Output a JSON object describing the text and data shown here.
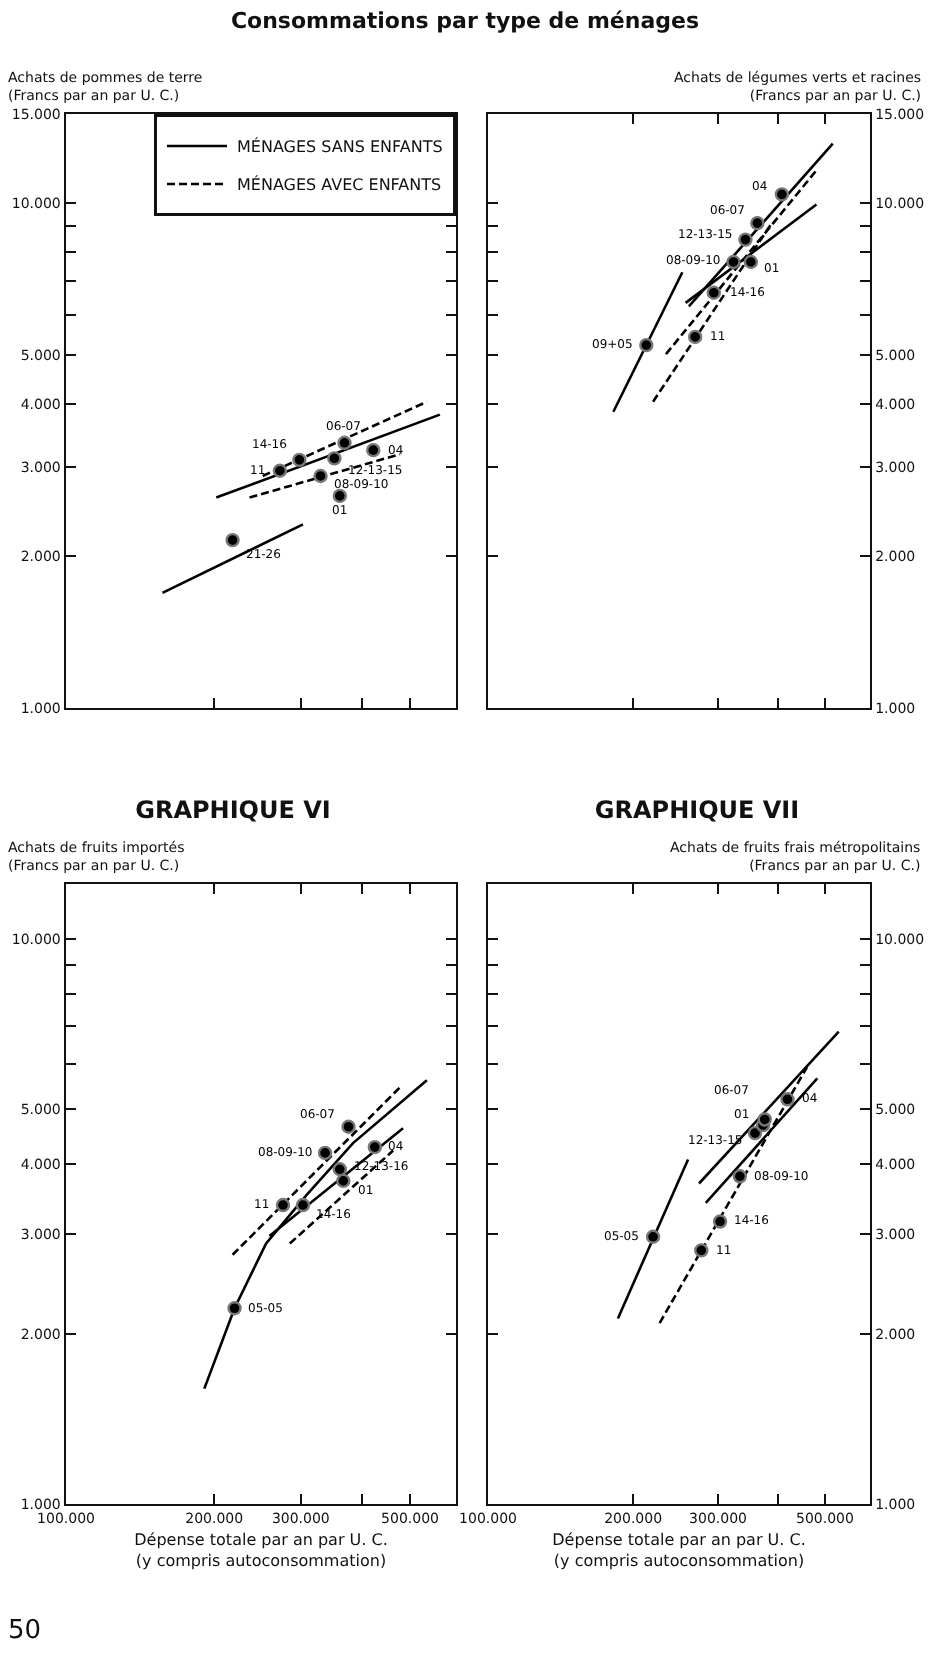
{
  "chart_data": [
    {
      "type": "scatter",
      "title": "Consommations par type de ménages",
      "ylabel": "Achats de pommes de terre\n(Francs par an par U. C.)",
      "log": "xy",
      "tick_labels": "y",
      "legend": "top right",
      "xlim": [
        100000,
        620000
      ],
      "xticks": [
        {
          "value": 200000,
          "label": null
        },
        {
          "value": 300000,
          "label": null
        },
        {
          "value": 400000,
          "label": null
        },
        {
          "value": 500000,
          "label": null
        }
      ],
      "ylim": [
        1000,
        15000
      ],
      "yticks": [
        {
          "value": 1000,
          "label": "1.000"
        },
        {
          "value": 2000,
          "label": "2.000"
        },
        {
          "value": 3000,
          "label": "3.000"
        },
        {
          "value": 4000,
          "label": "4.000"
        },
        {
          "value": 5000,
          "label": "5.000"
        },
        {
          "value": 6000,
          "label": null
        },
        {
          "value": 7000,
          "label": null
        },
        {
          "value": 8000,
          "label": null
        },
        {
          "value": 9000,
          "label": null
        },
        {
          "value": 10000,
          "label": "10.000"
        },
        {
          "value": 15000,
          "label": "15.000"
        }
      ],
      "series": [
        {
          "type": "line",
          "name": "MÉNAGES SANS ENFANTS",
          "color": "#000000",
          "line_style": "solid",
          "x": [
            202000,
            575000
          ],
          "values": [
            2610,
            3810
          ]
        },
        {
          "type": "line",
          "name": "MÉNAGES AVEC ENFANTS",
          "color": "#000000",
          "line_style": "dashed",
          "x": [
            251000,
            541000
          ],
          "values": [
            2880,
            4040
          ]
        },
        {
          "type": "line",
          "color": "#000000",
          "line_style": "solid",
          "x": [
            157000,
            303000
          ],
          "values": [
            1690,
            2310
          ]
        },
        {
          "type": "line",
          "color": "#000000",
          "line_style": "dashed",
          "x": [
            236000,
            477000
          ],
          "values": [
            2610,
            3180
          ]
        },
        {
          "type": "scatter",
          "color": "#000000",
          "marker": "circle",
          "x": [
            218000,
            272000,
            298000,
            368000,
            329000,
            351000,
            421000,
            360000
          ],
          "values": [
            2150,
            2950,
            3100,
            3350,
            2880,
            3120,
            3240,
            2630
          ]
        }
      ],
      "annotations": [
        {
          "text": "21-26",
          "x": 218000,
          "y": 2150
        },
        {
          "text": "11",
          "x": 272000,
          "y": 2950
        },
        {
          "text": "14-16",
          "x": 298000,
          "y": 3100
        },
        {
          "text": "06-07",
          "x": 368000,
          "y": 3350
        },
        {
          "text": "08-09-10",
          "x": 329000,
          "y": 2880
        },
        {
          "text": "12-13-15",
          "x": 351000,
          "y": 3120
        },
        {
          "text": "04",
          "x": 421000,
          "y": 3240
        },
        {
          "text": "01",
          "x": 360000,
          "y": 2630
        }
      ]
    },
    {
      "type": "scatter",
      "ylabel": "Achats de légumes verts et racines\n(Francs par an par U. C.)",
      "log": "xy",
      "tick_labels": "y",
      "xlim": [
        100000,
        620000
      ],
      "xticks": [
        {
          "value": 200000,
          "label": null
        },
        {
          "value": 300000,
          "label": null
        },
        {
          "value": 400000,
          "label": null
        },
        {
          "value": 500000,
          "label": null
        }
      ],
      "ylim": [
        1000,
        15000
      ],
      "yticks": [
        {
          "value": 1000,
          "label": "1.000"
        },
        {
          "value": 2000,
          "label": "2.000"
        },
        {
          "value": 3000,
          "label": "3.000"
        },
        {
          "value": 4000,
          "label": "4.000"
        },
        {
          "value": 5000,
          "label": "5.000"
        },
        {
          "value": 6000,
          "label": null
        },
        {
          "value": 7000,
          "label": null
        },
        {
          "value": 8000,
          "label": null
        },
        {
          "value": 9000,
          "label": null
        },
        {
          "value": 10000,
          "label": "10.000"
        },
        {
          "value": 15000,
          "label": "15.000"
        }
      ],
      "series": [
        {
          "type": "line",
          "color": "#000000",
          "line_style": "solid",
          "x": [
            182000,
            253000
          ],
          "values": [
            3860,
            7290
          ]
        },
        {
          "type": "line",
          "color": "#000000",
          "line_style": "solid",
          "x": [
            261000,
            519000
          ],
          "values": [
            6240,
            13100
          ]
        },
        {
          "type": "line",
          "color": "#000000",
          "line_style": "solid",
          "x": [
            257000,
            480000
          ],
          "values": [
            6340,
            9930
          ]
        },
        {
          "type": "line",
          "color": "#000000",
          "line_style": "dashed",
          "x": [
            220000,
            386000
          ],
          "values": [
            4040,
            9060
          ]
        },
        {
          "type": "line",
          "color": "#000000",
          "line_style": "dashed",
          "x": [
            234000,
            480000
          ],
          "values": [
            5020,
            11600
          ]
        },
        {
          "type": "scatter",
          "color": "#000000",
          "marker": "circle",
          "x": [
            213000,
            269000,
            294000,
            323000,
            351000,
            342000,
            362000,
            407000
          ],
          "values": [
            5230,
            5430,
            6640,
            7640,
            7640,
            8460,
            9120,
            10400
          ]
        }
      ],
      "annotations": [
        {
          "text": "09+05",
          "x": 213000,
          "y": 5230
        },
        {
          "text": "11",
          "x": 269000,
          "y": 5430
        },
        {
          "text": "14-16",
          "x": 294000,
          "y": 6640
        },
        {
          "text": "08-09-10",
          "x": 323000,
          "y": 7640
        },
        {
          "text": "01",
          "x": 351000,
          "y": 7640
        },
        {
          "text": "12-13-15",
          "x": 342000,
          "y": 8460
        },
        {
          "text": "06-07",
          "x": 362000,
          "y": 9120
        },
        {
          "text": "04",
          "x": 407000,
          "y": 10400
        }
      ]
    },
    {
      "type": "scatter",
      "title": "GRAPHIQUE VI",
      "ylabel": "Achats de fruits importés\n(Francs par an par U. C.)",
      "xlabel": "Dépense totale par an par U. C.\n(y compris autoconsommation)",
      "log": "xy",
      "xlim": [
        100000,
        620000
      ],
      "xticks": [
        {
          "value": 100000,
          "label": "100.000"
        },
        {
          "value": 200000,
          "label": "200.000"
        },
        {
          "value": 300000,
          "label": "300.000"
        },
        {
          "value": 400000,
          "label": null
        },
        {
          "value": 500000,
          "label": "500.000"
        }
      ],
      "ylim": [
        1000,
        12500
      ],
      "yticks": [
        {
          "value": 1000,
          "label": "1.000"
        },
        {
          "value": 2000,
          "label": "2.000"
        },
        {
          "value": 3000,
          "label": "3.000"
        },
        {
          "value": 4000,
          "label": "4.000"
        },
        {
          "value": 5000,
          "label": "5.000"
        },
        {
          "value": 6000,
          "label": null
        },
        {
          "value": 7000,
          "label": null
        },
        {
          "value": 8000,
          "label": null
        },
        {
          "value": 9000,
          "label": null
        },
        {
          "value": 10000,
          "label": "10.000"
        }
      ],
      "series": [
        {
          "type": "line",
          "color": "#000000",
          "line_style": "solid",
          "x": [
            191000,
            220000,
            255000,
            308000,
            383000,
            541000
          ],
          "values": [
            1600,
            2220,
            2890,
            3520,
            4350,
            5620
          ]
        },
        {
          "type": "line",
          "color": "#000000",
          "line_style": "solid",
          "x": [
            259000,
            484000
          ],
          "values": [
            2980,
            4620
          ]
        },
        {
          "type": "line",
          "color": "#000000",
          "line_style": "dashed",
          "x": [
            218000,
            477000
          ],
          "values": [
            2760,
            5460
          ]
        },
        {
          "type": "line",
          "color": "#000000",
          "line_style": "dashed",
          "x": [
            285000,
            462000
          ],
          "values": [
            2890,
            4220
          ]
        },
        {
          "type": "scatter",
          "color": "#000000",
          "marker": "circle",
          "x": [
            220000,
            276000,
            303000,
            336000,
            375000,
            360000,
            366000,
            424000
          ],
          "values": [
            2220,
            3380,
            3380,
            4180,
            4650,
            3910,
            3730,
            4280
          ]
        }
      ],
      "annotations": [
        {
          "text": "05-05",
          "x": 220000,
          "y": 2220
        },
        {
          "text": "11",
          "x": 276000,
          "y": 3380
        },
        {
          "text": "14-16",
          "x": 303000,
          "y": 3380
        },
        {
          "text": "08-09-10",
          "x": 336000,
          "y": 4180
        },
        {
          "text": "06-07",
          "x": 375000,
          "y": 4650
        },
        {
          "text": "12-13-16",
          "x": 360000,
          "y": 3910
        },
        {
          "text": "01",
          "x": 366000,
          "y": 3730
        },
        {
          "text": "04",
          "x": 424000,
          "y": 4280
        },
        "50"
      ]
    },
    {
      "type": "scatter",
      "title": "GRAPHIQUE VII",
      "ylabel": "Achats de fruits frais métropolitains\n(Francs par an par U. C.)",
      "xlabel": "Dépense totale par an par U. C.\n(y compris autoconsommation)",
      "log": "xy",
      "xlim": [
        100000,
        620000
      ],
      "xticks": [
        {
          "value": 100000,
          "label": "100.000"
        },
        {
          "value": 200000,
          "label": "200.000"
        },
        {
          "value": 300000,
          "label": "300.000"
        },
        {
          "value": 400000,
          "label": null
        },
        {
          "value": 500000,
          "label": "500.000"
        }
      ],
      "ylim": [
        1000,
        12500
      ],
      "yticks": [
        {
          "value": 1000,
          "label": "1.000"
        },
        {
          "value": 2000,
          "label": "2.000"
        },
        {
          "value": 3000,
          "label": "3.000"
        },
        {
          "value": 4000,
          "label": "4.000"
        },
        {
          "value": 5000,
          "label": "5.000"
        },
        {
          "value": 6000,
          "label": null
        },
        {
          "value": 7000,
          "label": null
        },
        {
          "value": 8000,
          "label": null
        },
        {
          "value": 9000,
          "label": null
        },
        {
          "value": 10000,
          "label": "10.000"
        }
      ],
      "series": [
        {
          "type": "line",
          "color": "#000000",
          "line_style": "solid",
          "x": [
            186000,
            260000
          ],
          "values": [
            2130,
            4070
          ]
        },
        {
          "type": "line",
          "color": "#000000",
          "line_style": "solid",
          "x": [
            274000,
            534000
          ],
          "values": [
            3690,
            6850
          ]
        },
        {
          "type": "line",
          "color": "#000000",
          "line_style": "solid",
          "x": [
            283000,
            482000
          ],
          "values": [
            3410,
            5660
          ]
        },
        {
          "type": "line",
          "color": "#000000",
          "line_style": "dashed",
          "x": [
            227000,
            459000
          ],
          "values": [
            2090,
            5930
          ]
        },
        {
          "type": "scatter",
          "color": "#000000",
          "marker": "circle",
          "x": [
            220000,
            277000,
            303000,
            333000,
            358000,
            372000,
            375000,
            418000
          ],
          "values": [
            2970,
            2810,
            3160,
            3800,
            4530,
            4680,
            4790,
            5200
          ]
        }
      ],
      "annotations": [
        {
          "text": "05-05",
          "x": 220000,
          "y": 2970
        },
        {
          "text": "11",
          "x": 277000,
          "y": 2810
        },
        {
          "text": "14-16",
          "x": 303000,
          "y": 3160
        },
        {
          "text": "08-09-10",
          "x": 333000,
          "y": 3800
        },
        {
          "text": "12-13-15",
          "x": 358000,
          "y": 4530
        },
        {
          "text": "01",
          "x": 372000,
          "y": 4680
        },
        {
          "text": "06-07",
          "x": 375000,
          "y": 4790
        },
        {
          "text": "04",
          "x": 418000,
          "y": 5200
        }
      ]
    }
  ]
}
